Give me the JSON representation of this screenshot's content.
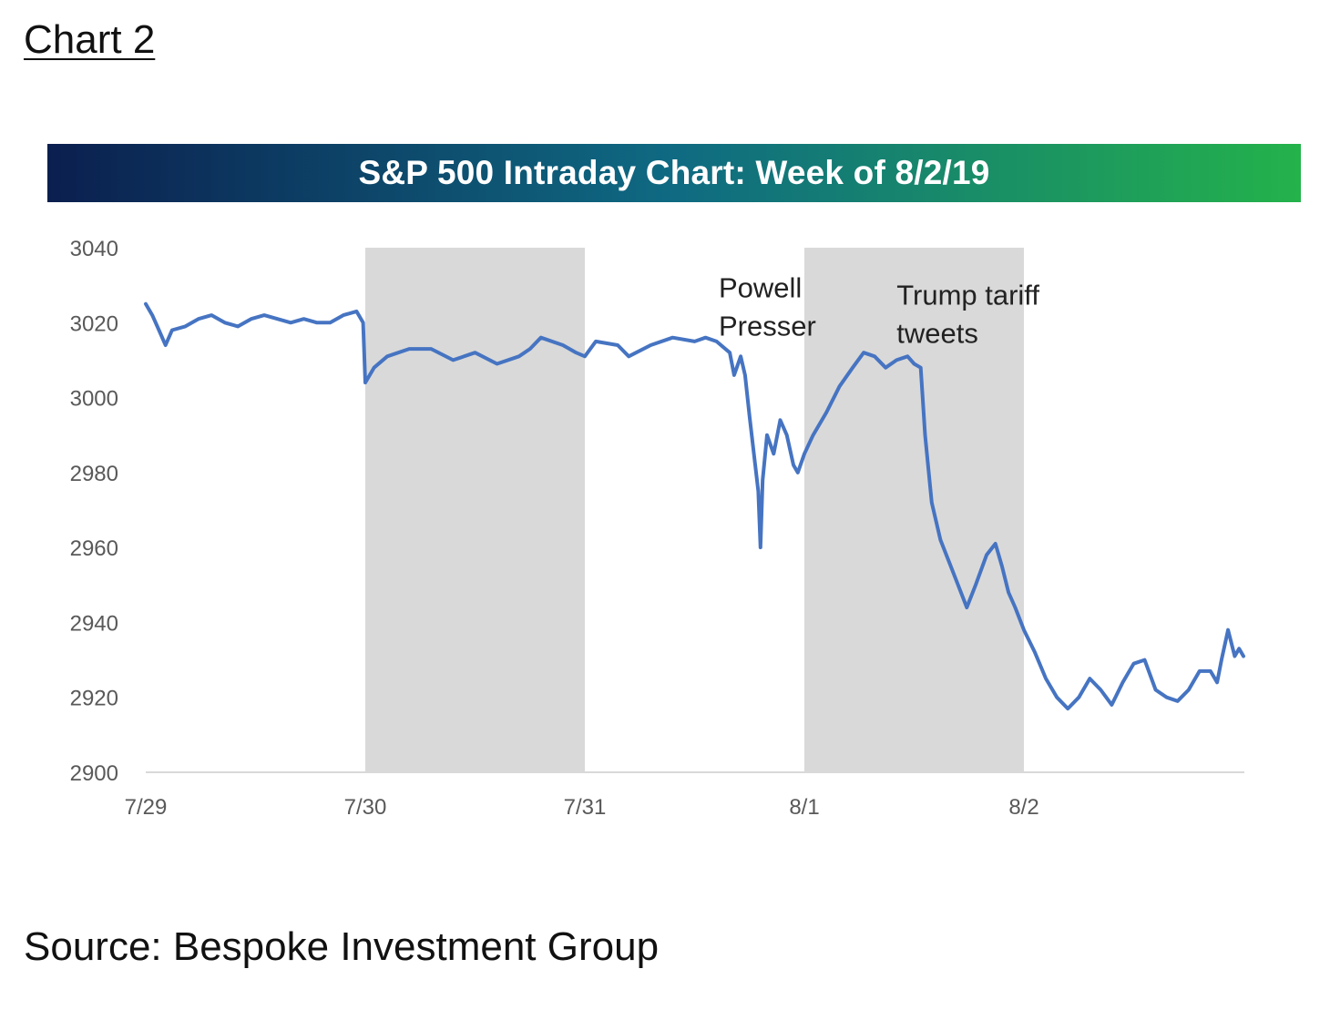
{
  "heading": "Chart 2",
  "source": "Source: Bespoke Investment Group",
  "colors": {
    "title_gradient_start": "#0b1f4f",
    "title_gradient_mid": "#0f6a82",
    "title_gradient_end": "#24b24b",
    "line": "#4674c2",
    "shade": "#d9d9d9",
    "axis_text": "#595959",
    "axis_line": "#d9d9d9"
  },
  "chart_data": {
    "type": "line",
    "title": "S&P 500 Intraday Chart: Week of 8/2/19",
    "xlabel": "",
    "ylabel": "",
    "ylim": [
      2900,
      3040
    ],
    "yticks": [
      "2900",
      "2920",
      "2940",
      "2960",
      "2980",
      "3000",
      "3020",
      "3040"
    ],
    "xlim": [
      0,
      5
    ],
    "xticks": [
      {
        "label": "7/29",
        "x": 0
      },
      {
        "label": "7/30",
        "x": 1
      },
      {
        "label": "7/31",
        "x": 2
      },
      {
        "label": "8/1",
        "x": 3
      },
      {
        "label": "8/2",
        "x": 4
      }
    ],
    "shaded_regions": [
      {
        "x0": 1,
        "x1": 2
      },
      {
        "x0": 3,
        "x1": 4
      }
    ],
    "annotations": [
      {
        "lines": [
          "Powell",
          "Presser"
        ],
        "x": 2.61,
        "y": 3020
      },
      {
        "lines": [
          "Trump tariff",
          "tweets"
        ],
        "x": 3.42,
        "y": 3018
      }
    ],
    "series": [
      {
        "name": "S&P 500",
        "points": [
          [
            0.0,
            3025
          ],
          [
            0.03,
            3022
          ],
          [
            0.06,
            3018
          ],
          [
            0.09,
            3014
          ],
          [
            0.12,
            3018
          ],
          [
            0.18,
            3019
          ],
          [
            0.24,
            3021
          ],
          [
            0.3,
            3022
          ],
          [
            0.36,
            3020
          ],
          [
            0.42,
            3019
          ],
          [
            0.48,
            3021
          ],
          [
            0.54,
            3022
          ],
          [
            0.6,
            3021
          ],
          [
            0.66,
            3020
          ],
          [
            0.72,
            3021
          ],
          [
            0.78,
            3020
          ],
          [
            0.84,
            3020
          ],
          [
            0.9,
            3022
          ],
          [
            0.96,
            3023
          ],
          [
            0.99,
            3020
          ],
          [
            1.0,
            3004
          ],
          [
            1.04,
            3008
          ],
          [
            1.1,
            3011
          ],
          [
            1.2,
            3013
          ],
          [
            1.3,
            3013
          ],
          [
            1.4,
            3010
          ],
          [
            1.5,
            3012
          ],
          [
            1.6,
            3009
          ],
          [
            1.7,
            3011
          ],
          [
            1.75,
            3013
          ],
          [
            1.8,
            3016
          ],
          [
            1.9,
            3014
          ],
          [
            1.96,
            3012
          ],
          [
            2.0,
            3011
          ],
          [
            2.05,
            3015
          ],
          [
            2.15,
            3014
          ],
          [
            2.2,
            3011
          ],
          [
            2.3,
            3014
          ],
          [
            2.4,
            3016
          ],
          [
            2.5,
            3015
          ],
          [
            2.55,
            3016
          ],
          [
            2.6,
            3015
          ],
          [
            2.66,
            3012
          ],
          [
            2.68,
            3006
          ],
          [
            2.71,
            3011
          ],
          [
            2.73,
            3006
          ],
          [
            2.75,
            2995
          ],
          [
            2.77,
            2985
          ],
          [
            2.79,
            2975
          ],
          [
            2.8,
            2960
          ],
          [
            2.81,
            2978
          ],
          [
            2.83,
            2990
          ],
          [
            2.86,
            2985
          ],
          [
            2.89,
            2994
          ],
          [
            2.92,
            2990
          ],
          [
            2.95,
            2982
          ],
          [
            2.97,
            2980
          ],
          [
            3.0,
            2985
          ],
          [
            3.04,
            2990
          ],
          [
            3.1,
            2996
          ],
          [
            3.16,
            3003
          ],
          [
            3.22,
            3008
          ],
          [
            3.27,
            3012
          ],
          [
            3.32,
            3011
          ],
          [
            3.37,
            3008
          ],
          [
            3.42,
            3010
          ],
          [
            3.47,
            3011
          ],
          [
            3.5,
            3009
          ],
          [
            3.53,
            3008
          ],
          [
            3.55,
            2990
          ],
          [
            3.58,
            2972
          ],
          [
            3.62,
            2962
          ],
          [
            3.66,
            2956
          ],
          [
            3.7,
            2950
          ],
          [
            3.74,
            2944
          ],
          [
            3.78,
            2950
          ],
          [
            3.83,
            2958
          ],
          [
            3.87,
            2961
          ],
          [
            3.9,
            2955
          ],
          [
            3.93,
            2948
          ],
          [
            3.96,
            2944
          ],
          [
            4.0,
            2938
          ],
          [
            4.05,
            2932
          ],
          [
            4.1,
            2925
          ],
          [
            4.15,
            2920
          ],
          [
            4.2,
            2917
          ],
          [
            4.25,
            2920
          ],
          [
            4.3,
            2925
          ],
          [
            4.35,
            2922
          ],
          [
            4.4,
            2918
          ],
          [
            4.45,
            2924
          ],
          [
            4.5,
            2929
          ],
          [
            4.55,
            2930
          ],
          [
            4.6,
            2922
          ],
          [
            4.65,
            2920
          ],
          [
            4.7,
            2919
          ],
          [
            4.75,
            2922
          ],
          [
            4.8,
            2927
          ],
          [
            4.85,
            2927
          ],
          [
            4.88,
            2924
          ],
          [
            4.9,
            2930
          ],
          [
            4.93,
            2938
          ],
          [
            4.96,
            2931
          ],
          [
            4.98,
            2933
          ],
          [
            5.0,
            2931
          ]
        ]
      }
    ]
  }
}
